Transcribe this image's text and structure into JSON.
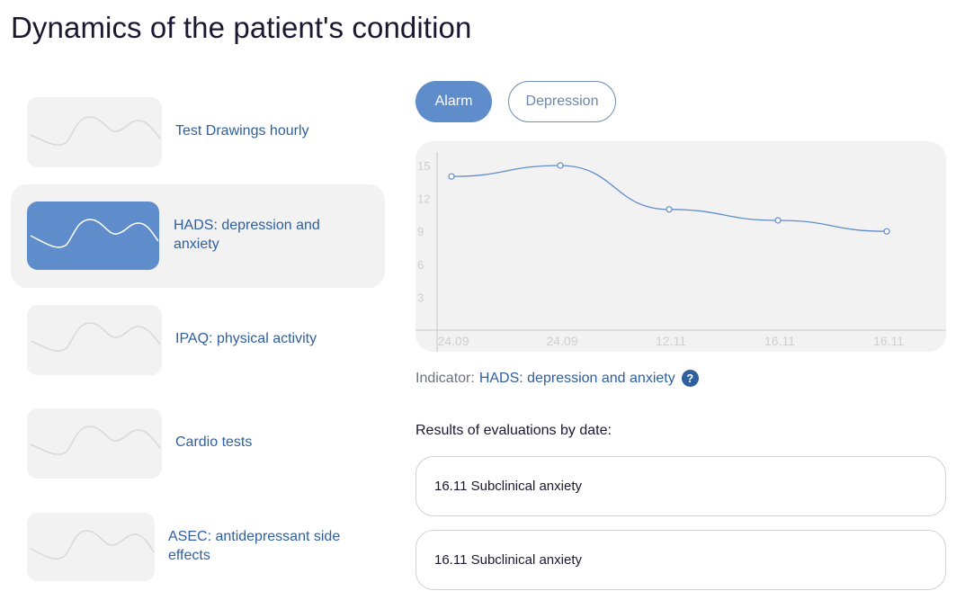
{
  "page": {
    "title": "Dynamics of the patient's condition"
  },
  "sidebar": {
    "items": [
      {
        "label": "Test Drawings hourly",
        "active": false
      },
      {
        "label": "HADS: depression and anxiety",
        "active": true
      },
      {
        "label": "IPAQ: physical activity",
        "active": false
      },
      {
        "label": "Cardio tests",
        "active": false
      },
      {
        "label": "ASEC: antidepressant side effects",
        "active": false
      }
    ]
  },
  "tabs": [
    {
      "label": "Alarm",
      "selected": true
    },
    {
      "label": "Depression",
      "selected": false
    }
  ],
  "chart_data": {
    "type": "line",
    "title": "",
    "xlabel": "",
    "ylabel": "",
    "categories": [
      "24.09",
      "24.09",
      "12.11",
      "16.11",
      "16.11"
    ],
    "series": [
      {
        "name": "Alarm",
        "values": [
          14,
          15,
          11,
          10,
          9
        ]
      }
    ],
    "y_ticks": [
      3,
      6,
      9,
      12,
      15
    ],
    "ylim": [
      0,
      16
    ],
    "grid": false,
    "line_color": "#5f8ccb"
  },
  "indicator": {
    "prefix": "Indicator:",
    "name": "HADS: depression and anxiety",
    "help_glyph": "?"
  },
  "results": {
    "title": "Results of evaluations by date:",
    "items": [
      "16.11 Subclinical anxiety",
      "16.11 Subclinical anxiety"
    ]
  },
  "colors": {
    "accent": "#5f8ccb",
    "link": "#2f5f9e",
    "panel": "#f2f2f2"
  }
}
